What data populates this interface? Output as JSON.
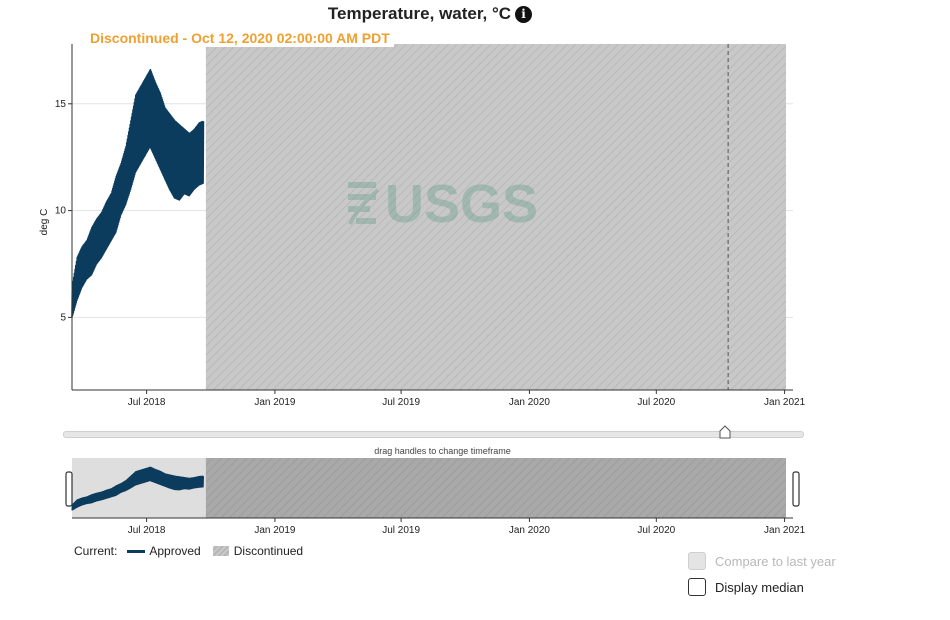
{
  "title": "Temperature, water, °C",
  "info_icon": "info-icon",
  "discontinued_label": "Discontinued - Oct 12, 2020 02:00:00 AM PDT",
  "watermark": "USGS",
  "drag_hint": "drag handles to change timeframe",
  "legend": {
    "current_label": "Current:",
    "approved_label": "Approved",
    "discontinued_label": "Discontinued"
  },
  "options": {
    "compare_label": "Compare to last year",
    "median_label": "Display median"
  },
  "colors": {
    "series": "#0b3c5d",
    "discontinued": "#c8c8c8",
    "accent": "#f0a030"
  },
  "chart_data": {
    "type": "line",
    "ylabel": "deg C",
    "ylim": [
      1.6,
      17.8
    ],
    "yticks": [
      5,
      10,
      15
    ],
    "xlim": [
      "2018-03-16",
      "2021-01-03"
    ],
    "xticks": [
      {
        "date": "2018-07-01",
        "label": "Jul 2018"
      },
      {
        "date": "2019-01-01",
        "label": "Jan 2019"
      },
      {
        "date": "2019-07-01",
        "label": "Jul 2019"
      },
      {
        "date": "2020-01-01",
        "label": "Jan 2020"
      },
      {
        "date": "2020-07-01",
        "label": "Jul 2020"
      },
      {
        "date": "2021-01-01",
        "label": "Jan 2021"
      }
    ],
    "discontinued_start": "2018-09-24",
    "marker_date": "2020-10-12",
    "grid": true,
    "series": [
      {
        "name": "Approved",
        "x": [
          "2018-03-16",
          "2018-03-23",
          "2018-03-30",
          "2018-04-06",
          "2018-04-13",
          "2018-04-20",
          "2018-04-27",
          "2018-05-04",
          "2018-05-11",
          "2018-05-18",
          "2018-05-25",
          "2018-06-01",
          "2018-06-08",
          "2018-06-15",
          "2018-06-22",
          "2018-06-29",
          "2018-07-06",
          "2018-07-13",
          "2018-07-20",
          "2018-07-27",
          "2018-08-03",
          "2018-08-10",
          "2018-08-17",
          "2018-08-24",
          "2018-08-31",
          "2018-09-07",
          "2018-09-14",
          "2018-09-21"
        ],
        "min": [
          5.0,
          5.8,
          6.4,
          6.8,
          7.0,
          7.5,
          7.8,
          8.2,
          8.6,
          9.0,
          9.8,
          10.3,
          11.0,
          11.8,
          12.2,
          12.6,
          13.0,
          12.5,
          12.0,
          11.5,
          11.0,
          10.6,
          10.5,
          10.8,
          10.7,
          11.0,
          11.2,
          11.3
        ],
        "max": [
          6.5,
          7.8,
          8.3,
          8.6,
          9.2,
          9.6,
          9.9,
          10.4,
          10.8,
          11.6,
          12.2,
          13.0,
          14.2,
          15.4,
          15.8,
          16.2,
          16.6,
          16.0,
          15.5,
          14.8,
          14.5,
          14.2,
          14.0,
          13.8,
          13.6,
          13.8,
          14.1,
          14.2
        ]
      }
    ]
  }
}
